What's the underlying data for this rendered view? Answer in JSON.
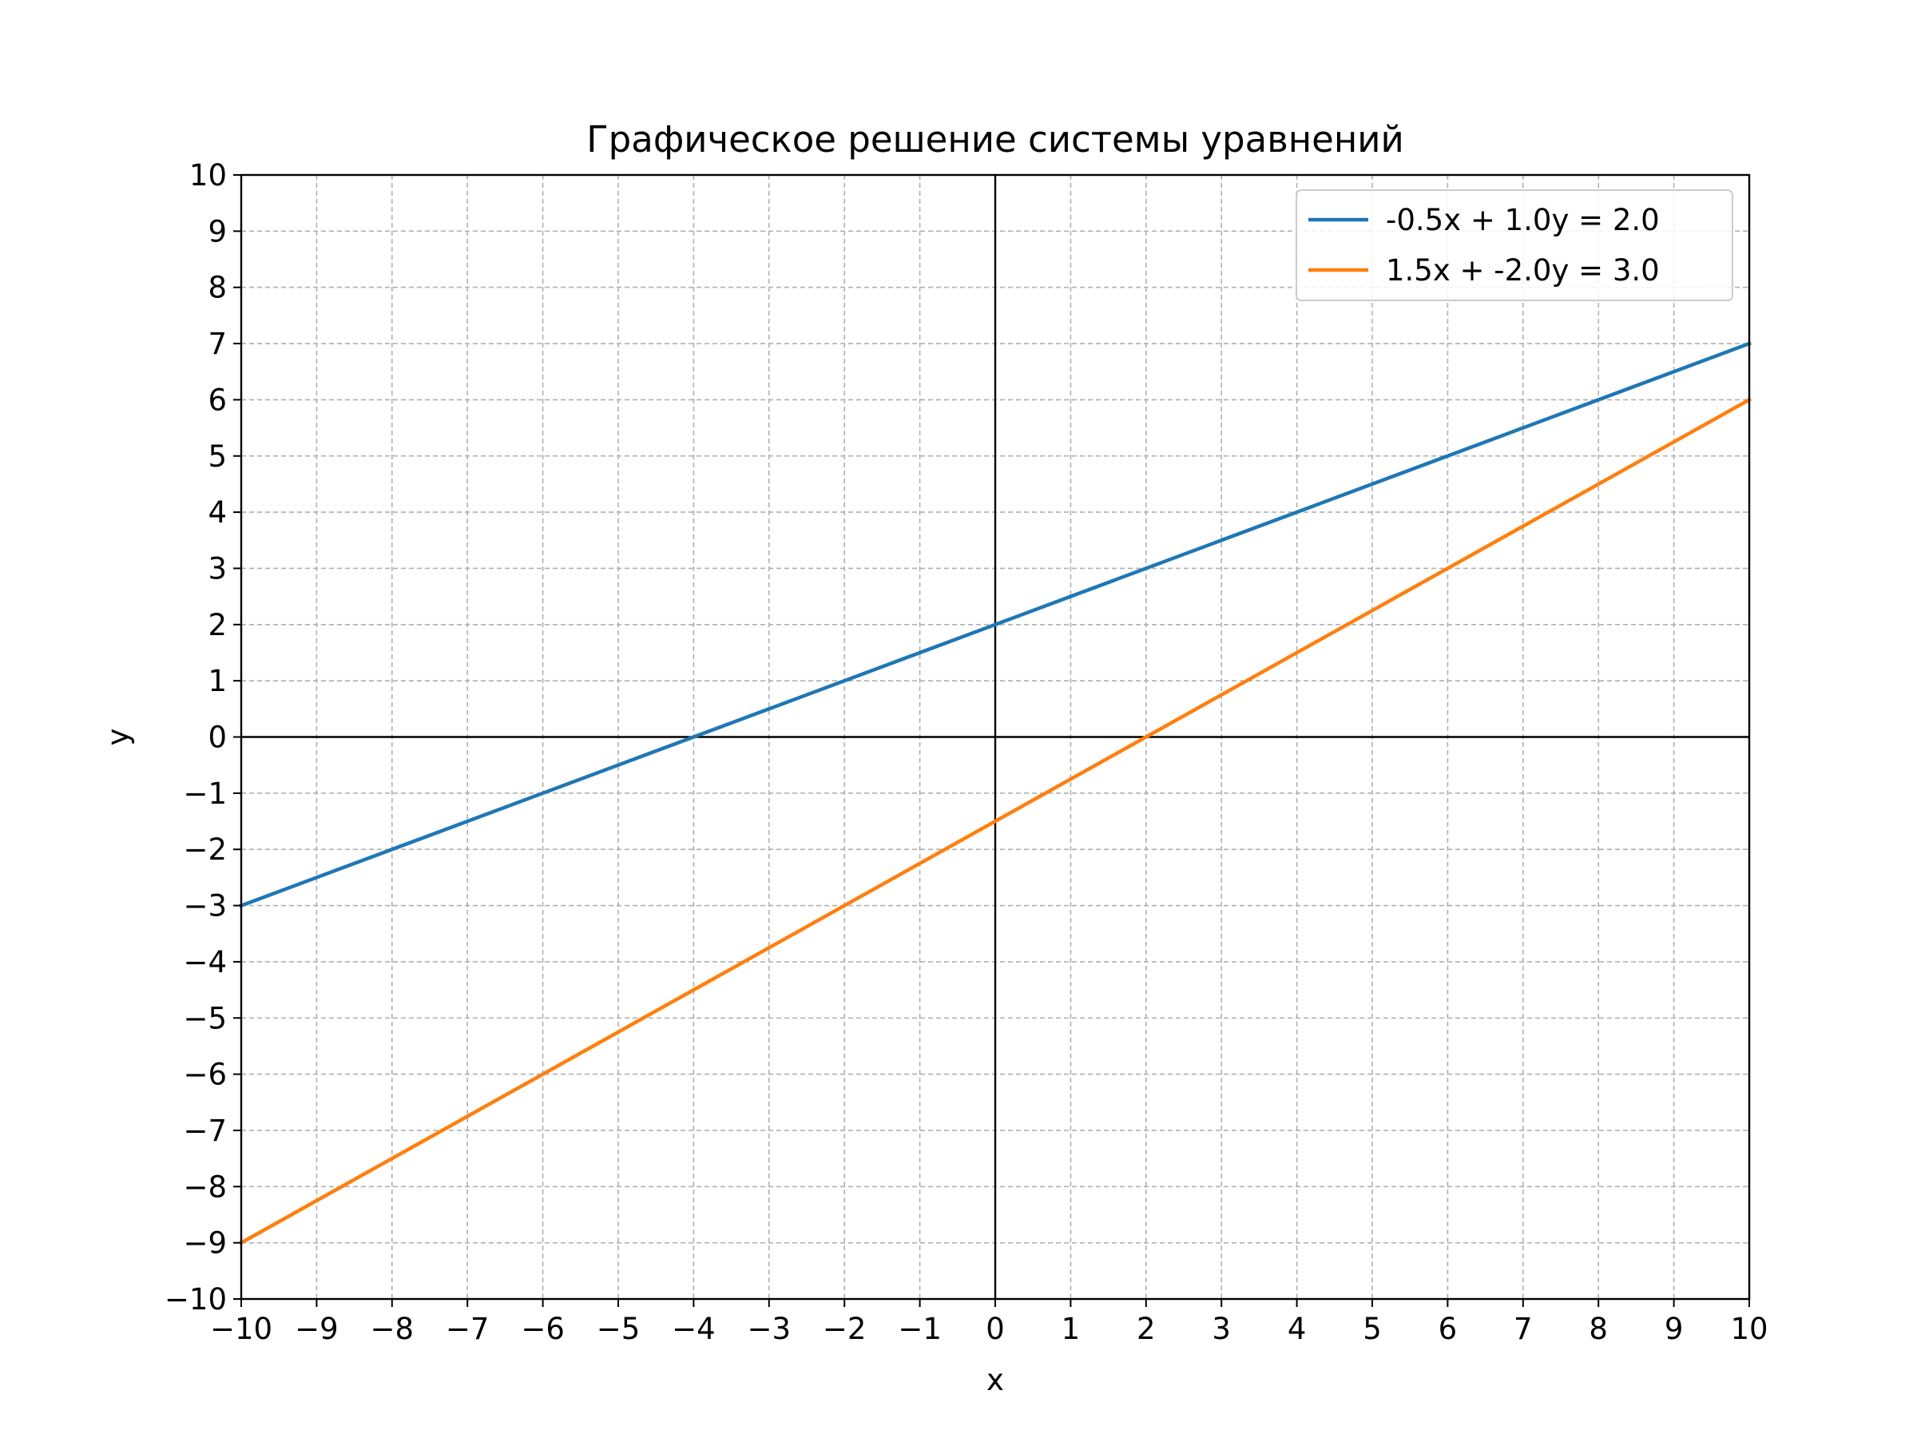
{
  "chart_data": {
    "type": "line",
    "title": "Графическое решение системы уравнений",
    "xlabel": "x",
    "ylabel": "y",
    "xlim": [
      -10,
      10
    ],
    "ylim": [
      -10,
      10
    ],
    "grid": true,
    "legend_position": "top-right",
    "x_ticks": [
      "−10",
      "−9",
      "−8",
      "−7",
      "−6",
      "−5",
      "−4",
      "−3",
      "−2",
      "−1",
      "0",
      "1",
      "2",
      "3",
      "4",
      "5",
      "6",
      "7",
      "8",
      "9",
      "10"
    ],
    "y_ticks": [
      "−10",
      "−9",
      "−8",
      "−7",
      "−6",
      "−5",
      "−4",
      "−3",
      "−2",
      "−1",
      "0",
      "1",
      "2",
      "3",
      "4",
      "5",
      "6",
      "7",
      "8",
      "9",
      "10"
    ],
    "series": [
      {
        "name": "-0.5x + 1.0y = 2.0",
        "color": "#1f77b4",
        "x": [
          -10,
          10
        ],
        "y": [
          -3,
          7
        ]
      },
      {
        "name": "1.5x + -2.0y = 3.0",
        "color": "#ff7f0e",
        "x": [
          -10,
          10
        ],
        "y": [
          -9,
          6
        ]
      }
    ]
  }
}
